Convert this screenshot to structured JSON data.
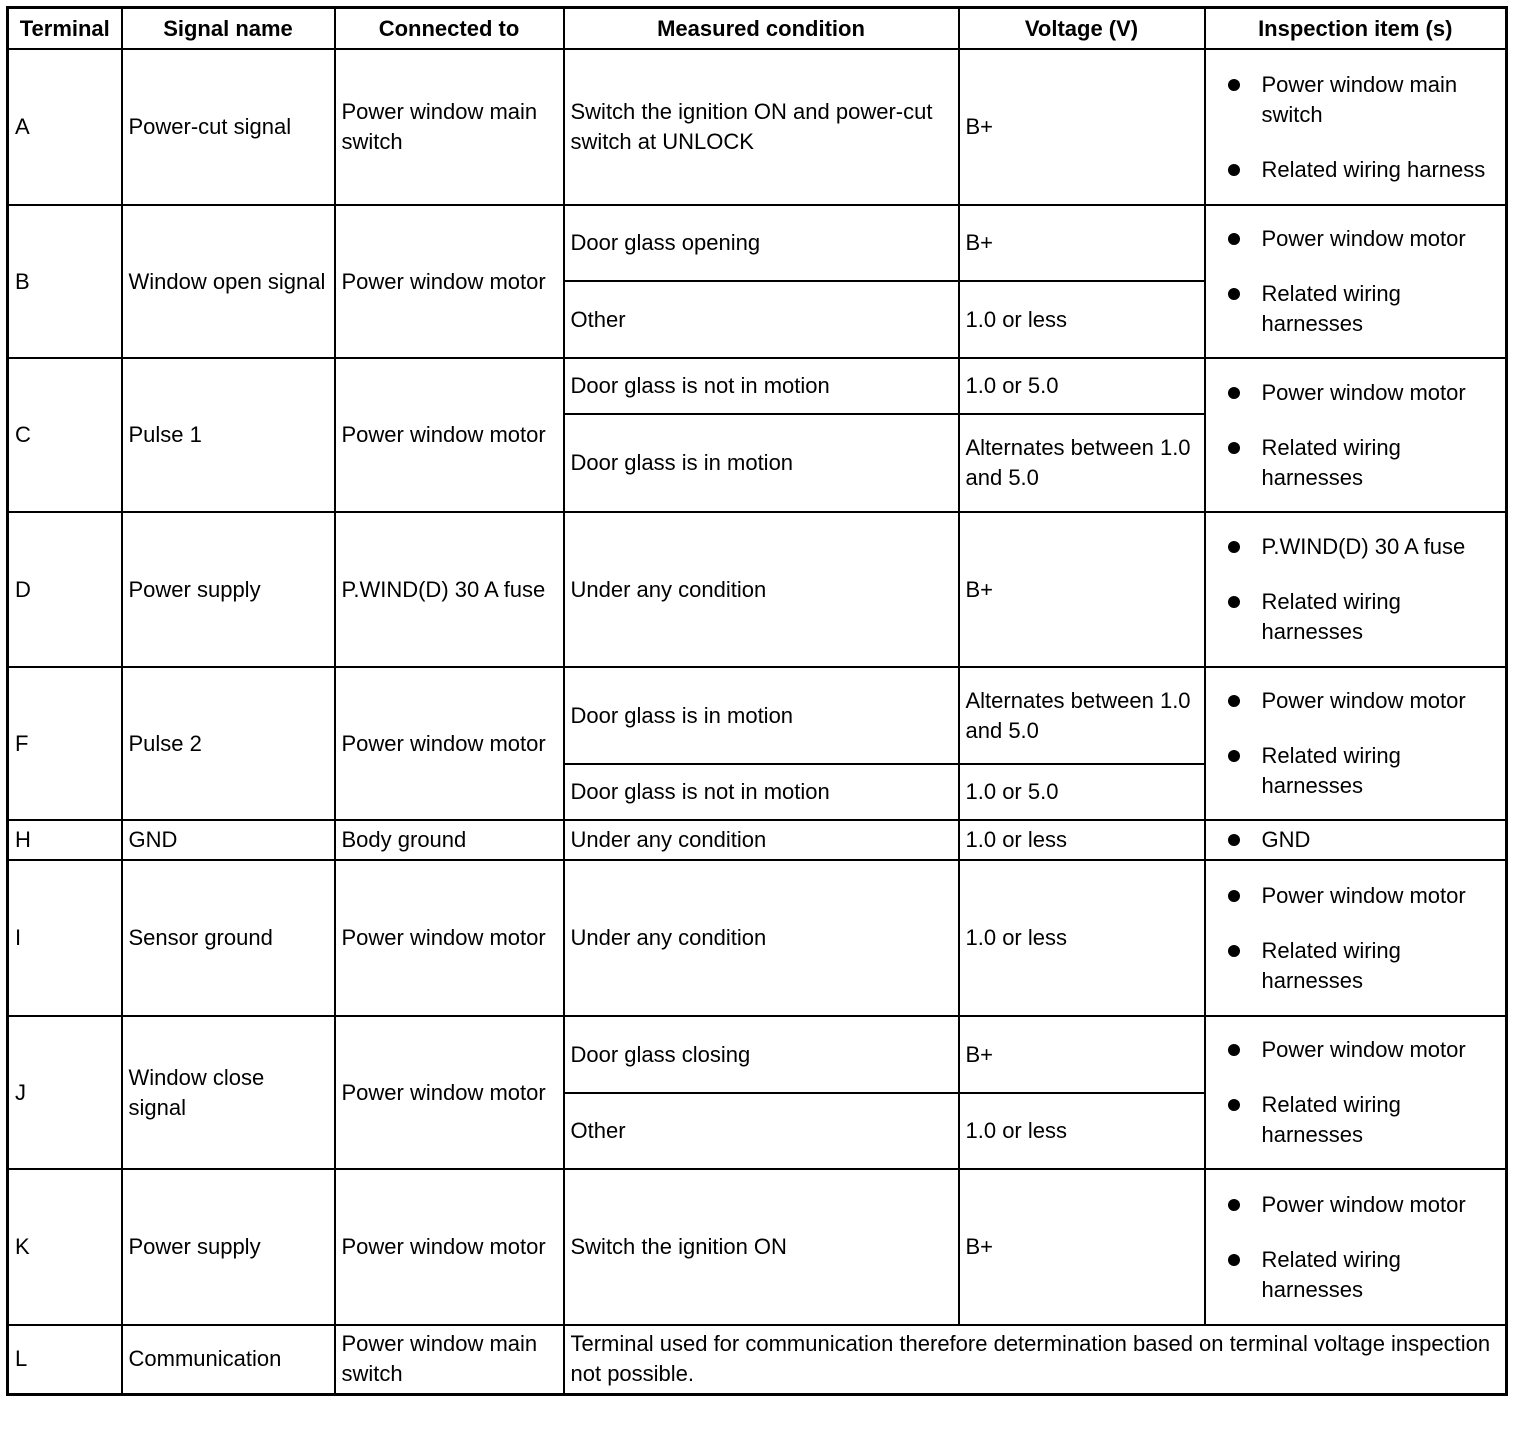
{
  "headers": [
    "Terminal",
    "Signal name",
    "Connected to",
    "Measured condition",
    "Voltage (V)",
    "Inspection item (s)"
  ],
  "rows": [
    {
      "terminal": "A",
      "signal": "Power-cut signal",
      "connected": "Power window main switch",
      "conditions": [
        {
          "condition": "Switch the ignition ON and power-cut switch at UNLOCK",
          "voltage": "B+"
        }
      ],
      "inspection": [
        "Power window main switch",
        "Related wiring harness"
      ]
    },
    {
      "terminal": "B",
      "signal": "Window open signal",
      "connected": "Power window motor",
      "conditions": [
        {
          "condition": "Door glass opening",
          "voltage": "B+"
        },
        {
          "condition": "Other",
          "voltage": "1.0 or less"
        }
      ],
      "inspection": [
        "Power window motor",
        "Related wiring harnesses"
      ]
    },
    {
      "terminal": "C",
      "signal": "Pulse 1",
      "connected": "Power window motor",
      "conditions": [
        {
          "condition": "Door glass is not in motion",
          "voltage": "1.0 or 5.0"
        },
        {
          "condition": "Door glass is in motion",
          "voltage": "Alternates between 1.0 and 5.0"
        }
      ],
      "inspection": [
        "Power window motor",
        "Related wiring harnesses"
      ]
    },
    {
      "terminal": "D",
      "signal": "Power supply",
      "connected": "P.WIND(D) 30 A fuse",
      "conditions": [
        {
          "condition": "Under any condition",
          "voltage": "B+"
        }
      ],
      "inspection": [
        "P.WIND(D) 30 A fuse",
        "Related wiring harnesses"
      ]
    },
    {
      "terminal": "F",
      "signal": "Pulse 2",
      "connected": "Power window motor",
      "conditions": [
        {
          "condition": "Door glass is in motion",
          "voltage": "Alternates between 1.0 and 5.0"
        },
        {
          "condition": "Door glass is not in motion",
          "voltage": "1.0 or 5.0"
        }
      ],
      "inspection": [
        "Power window motor",
        "Related wiring harnesses"
      ]
    },
    {
      "terminal": "H",
      "signal": "GND",
      "connected": "Body ground",
      "conditions": [
        {
          "condition": "Under any condition",
          "voltage": "1.0 or less"
        }
      ],
      "inspection": [
        "GND"
      ]
    },
    {
      "terminal": "I",
      "signal": "Sensor ground",
      "connected": "Power window motor",
      "conditions": [
        {
          "condition": "Under any condition",
          "voltage": "1.0 or less"
        }
      ],
      "inspection": [
        "Power window motor",
        "Related wiring harnesses"
      ]
    },
    {
      "terminal": "J",
      "signal": "Window close signal",
      "connected": "Power window motor",
      "conditions": [
        {
          "condition": "Door glass closing",
          "voltage": "B+"
        },
        {
          "condition": "Other",
          "voltage": "1.0 or less"
        }
      ],
      "inspection": [
        "Power window motor",
        "Related wiring harnesses"
      ]
    },
    {
      "terminal": "K",
      "signal": "Power supply",
      "connected": "Power window motor",
      "conditions": [
        {
          "condition": "Switch the ignition ON",
          "voltage": "B+"
        }
      ],
      "inspection": [
        "Power window motor",
        "Related wiring harnesses"
      ]
    },
    {
      "terminal": "L",
      "signal": "Communication",
      "connected": "Power window main switch",
      "note": "Terminal used for communication therefore determination based on terminal voltage inspection not possible."
    }
  ]
}
